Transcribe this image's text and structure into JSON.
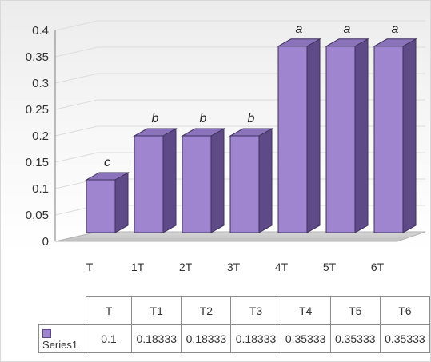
{
  "chart_data": {
    "type": "bar",
    "categories": [
      "T",
      "1T",
      "2T",
      "3T",
      "4T",
      "5T",
      "6T"
    ],
    "series": [
      {
        "name": "Series1",
        "values": [
          0.1,
          0.18333,
          0.18333,
          0.18333,
          0.35333,
          0.35333,
          0.35333
        ],
        "color": "#9f85d0"
      }
    ],
    "data_labels": [
      "c",
      "b",
      "b",
      "b",
      "a",
      "a",
      "a"
    ],
    "yticks": [
      "0",
      "0.05",
      "0.1",
      "0.15",
      "0.2",
      "0.25",
      "0.3",
      "0.35",
      "0.4"
    ],
    "ylim": [
      0,
      0.4
    ],
    "grid": true,
    "style": "3d-column",
    "table": {
      "headers": [
        "T",
        "T1",
        "T2",
        "T3",
        "T4",
        "T5",
        "T6"
      ],
      "series_label": "Series1",
      "values": [
        "0.1",
        "0.18333",
        "0.18333",
        "0.18333",
        "0.35333",
        "0.35333",
        "0.35333"
      ]
    }
  }
}
